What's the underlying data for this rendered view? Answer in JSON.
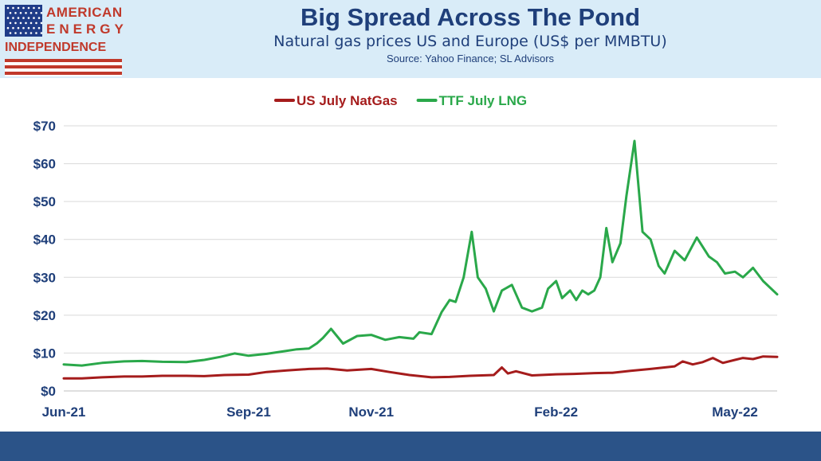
{
  "brand": {
    "line1": "AMERICAN",
    "line2": "ENERGY",
    "line3": "INDEPENDENCE",
    "red": "#c0392b",
    "blue": "#1f3c88"
  },
  "header": {
    "title": "Big Spread Across The Pond",
    "subtitle": "Natural gas prices US and Europe (US$ per MMBTU)",
    "source": "Source: Yahoo Finance; SL Advisors",
    "background": "#d9ecf8",
    "text_color": "#1f3f7a"
  },
  "footer": {
    "color": "#2b5388"
  },
  "chart_data": {
    "type": "line",
    "title": "",
    "xlabel": "",
    "ylabel": "",
    "ylim": [
      0,
      70
    ],
    "yticks": [
      0,
      10,
      20,
      30,
      40,
      50,
      60,
      70
    ],
    "ytick_labels": [
      "$0",
      "$10",
      "$20",
      "$30",
      "$40",
      "$50",
      "$60",
      "$70"
    ],
    "xlim": [
      "2021-06-01",
      "2022-05-22"
    ],
    "xtick_labels": [
      {
        "label": "Jun-21",
        "date": "2021-06-01"
      },
      {
        "label": "Sep-21",
        "date": "2021-09-01"
      },
      {
        "label": "Nov-21",
        "date": "2021-11-01"
      },
      {
        "label": "Feb-22",
        "date": "2022-02-01"
      },
      {
        "label": "May-22",
        "date": "2022-05-01"
      }
    ],
    "grid": "horizontal",
    "legend_position": "top",
    "series": [
      {
        "name": "US July NatGas",
        "color": "#a51c1c",
        "x": [
          "2021-06-01",
          "2021-06-10",
          "2021-06-20",
          "2021-07-01",
          "2021-07-10",
          "2021-07-20",
          "2021-08-01",
          "2021-08-10",
          "2021-08-20",
          "2021-09-01",
          "2021-09-10",
          "2021-09-20",
          "2021-10-01",
          "2021-10-10",
          "2021-10-20",
          "2021-11-01",
          "2021-11-10",
          "2021-11-20",
          "2021-12-01",
          "2021-12-10",
          "2021-12-20",
          "2022-01-01",
          "2022-01-05",
          "2022-01-08",
          "2022-01-12",
          "2022-01-20",
          "2022-02-01",
          "2022-02-10",
          "2022-02-20",
          "2022-03-01",
          "2022-03-10",
          "2022-03-20",
          "2022-04-01",
          "2022-04-05",
          "2022-04-10",
          "2022-04-15",
          "2022-04-20",
          "2022-04-25",
          "2022-05-01",
          "2022-05-05",
          "2022-05-10",
          "2022-05-15",
          "2022-05-22"
        ],
        "y": [
          3.3,
          3.3,
          3.6,
          3.8,
          3.8,
          4.0,
          4.0,
          3.9,
          4.2,
          4.3,
          5.0,
          5.4,
          5.8,
          5.9,
          5.4,
          5.8,
          5.0,
          4.2,
          3.6,
          3.7,
          4.0,
          4.2,
          6.2,
          4.6,
          5.2,
          4.1,
          4.4,
          4.5,
          4.7,
          4.8,
          5.3,
          5.8,
          6.5,
          7.8,
          7.0,
          7.6,
          8.7,
          7.4,
          8.2,
          8.7,
          8.4,
          9.1,
          9.0
        ]
      },
      {
        "name": "TTF July LNG",
        "color": "#2aa84a",
        "x": [
          "2021-06-01",
          "2021-06-10",
          "2021-06-20",
          "2021-07-01",
          "2021-07-10",
          "2021-07-20",
          "2021-08-01",
          "2021-08-10",
          "2021-08-18",
          "2021-08-25",
          "2021-09-01",
          "2021-09-10",
          "2021-09-20",
          "2021-09-25",
          "2021-10-01",
          "2021-10-05",
          "2021-10-08",
          "2021-10-12",
          "2021-10-18",
          "2021-10-25",
          "2021-11-01",
          "2021-11-08",
          "2021-11-15",
          "2021-11-22",
          "2021-11-25",
          "2021-12-01",
          "2021-12-06",
          "2021-12-10",
          "2021-12-13",
          "2021-12-17",
          "2021-12-21",
          "2021-12-24",
          "2021-12-28",
          "2022-01-01",
          "2022-01-05",
          "2022-01-10",
          "2022-01-15",
          "2022-01-20",
          "2022-01-25",
          "2022-01-28",
          "2022-02-01",
          "2022-02-04",
          "2022-02-08",
          "2022-02-11",
          "2022-02-14",
          "2022-02-17",
          "2022-02-20",
          "2022-02-23",
          "2022-02-26",
          "2022-03-01",
          "2022-03-05",
          "2022-03-08",
          "2022-03-12",
          "2022-03-16",
          "2022-03-20",
          "2022-03-24",
          "2022-03-27",
          "2022-04-01",
          "2022-04-06",
          "2022-04-12",
          "2022-04-18",
          "2022-04-22",
          "2022-04-26",
          "2022-05-01",
          "2022-05-05",
          "2022-05-10",
          "2022-05-15",
          "2022-05-22"
        ],
        "y": [
          7.0,
          6.7,
          7.4,
          7.8,
          7.9,
          7.7,
          7.6,
          8.2,
          9.0,
          9.9,
          9.3,
          9.8,
          10.6,
          11.0,
          11.2,
          12.6,
          14.0,
          16.4,
          12.5,
          14.5,
          14.8,
          13.5,
          14.2,
          13.8,
          15.5,
          15.0,
          20.8,
          24.0,
          23.5,
          30.0,
          42.0,
          30.0,
          27.0,
          21.0,
          26.5,
          28.0,
          22.0,
          21.0,
          22.0,
          27.0,
          29.0,
          24.5,
          26.5,
          24.0,
          26.5,
          25.5,
          26.5,
          30.0,
          43.0,
          34.0,
          39.0,
          51.5,
          66.0,
          42.0,
          40.0,
          33.0,
          31.0,
          37.0,
          34.5,
          40.5,
          35.5,
          34.0,
          31.0,
          31.5,
          30.0,
          32.5,
          29.0,
          25.5
        ]
      }
    ]
  }
}
